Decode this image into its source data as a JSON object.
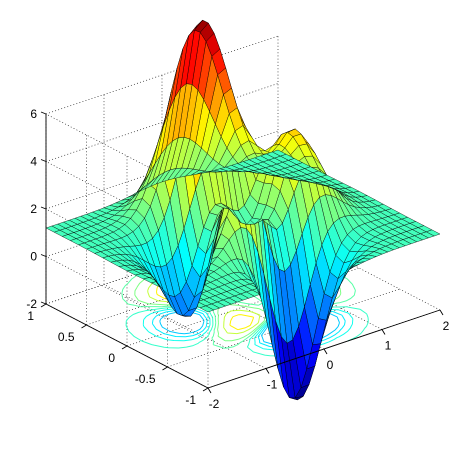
{
  "chart_data": {
    "type": "surface",
    "function": "peaks-like surface with contour projection on base plane",
    "title": "",
    "xlabel": "",
    "ylabel": "",
    "zlabel": "",
    "xlim": [
      -2,
      2
    ],
    "ylim": [
      -1,
      1
    ],
    "zlim": [
      -2,
      6
    ],
    "x_ticks": [
      -2,
      -1,
      0,
      1,
      2
    ],
    "y_ticks": [
      -1,
      -0.5,
      0,
      0.5,
      1
    ],
    "z_ticks": [
      -2,
      0,
      2,
      4,
      6
    ],
    "x_tick_labels": [
      "-2",
      "-1",
      "0",
      "1",
      "2"
    ],
    "y_tick_labels": [
      "-1",
      "-0.5",
      "0",
      "0.5",
      "1"
    ],
    "z_tick_labels": [
      "-2",
      "0",
      "2",
      "4",
      "6"
    ],
    "grid": true,
    "colormap": "jet",
    "contour_levels": [
      -0.5,
      0,
      0.5,
      1,
      1.5,
      2,
      3,
      4
    ],
    "grid_resolution": [
      40,
      20
    ]
  }
}
